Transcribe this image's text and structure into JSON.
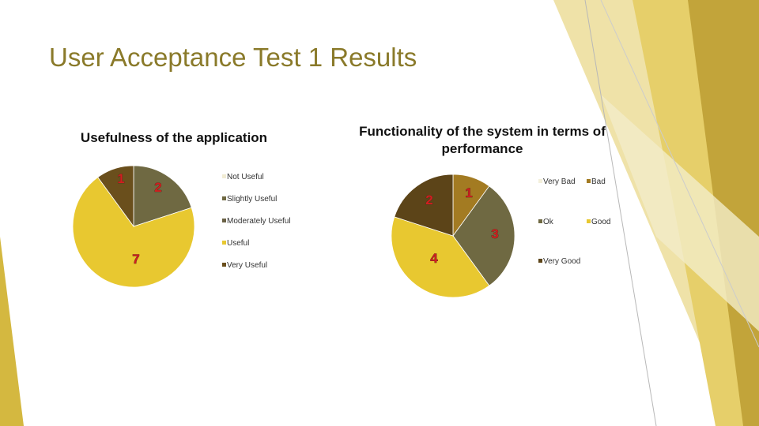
{
  "slide": {
    "title": "User Acceptance Test 1 Results"
  },
  "colors": {
    "title": "#8a7a2a",
    "not_useful": "#f1ecd4",
    "slightly_useful": "#6f6942",
    "moderately_useful": "#6a6145",
    "useful": "#e8c830",
    "very_useful": "#6a4f1c",
    "very_bad": "#f4f0dc",
    "bad": "#a37b22",
    "ok": "#6f6942",
    "good": "#e8c830",
    "very_good": "#5c4418",
    "data_label": "#d11f1f"
  },
  "chart_data": [
    {
      "type": "pie",
      "title": "Usefulness of the application",
      "legend_placement": "right",
      "categories": [
        "Not Useful",
        "Slightly Useful",
        "Moderately Useful",
        "Useful",
        "Very Useful"
      ],
      "values": [
        0,
        2,
        0,
        7,
        1
      ],
      "data_labels": [
        "",
        "2",
        "",
        "7",
        "1"
      ]
    },
    {
      "type": "pie",
      "title": "Functionality of the system in terms of performance",
      "legend_placement": "right",
      "categories": [
        "Very Bad",
        "Bad",
        "Ok",
        "Good",
        "Very Good"
      ],
      "values": [
        0,
        1,
        3,
        4,
        2
      ],
      "data_labels": [
        "",
        "1",
        "3",
        "4",
        "2"
      ]
    }
  ]
}
